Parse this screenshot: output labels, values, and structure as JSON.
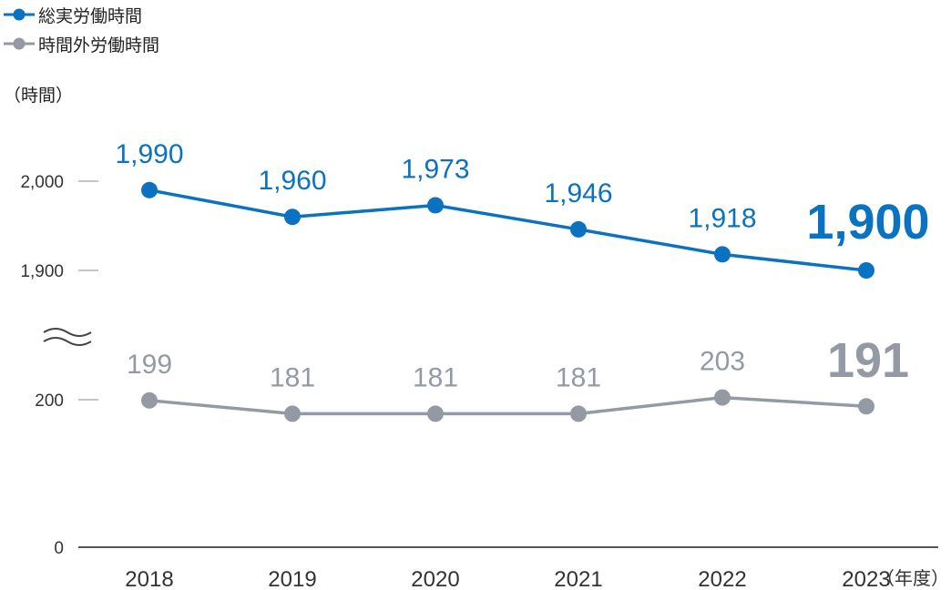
{
  "legend": {
    "total_label": "総実労働時間",
    "overtime_label": "時間外労働時間"
  },
  "unit_label": "（時間）",
  "x_unit_label": "（年度）",
  "colors": {
    "total": "#0a72c0",
    "overtime": "#939aa3",
    "axis": "#888888"
  },
  "chart_data": {
    "type": "line",
    "x": [
      "2018",
      "2019",
      "2020",
      "2021",
      "2022",
      "2023"
    ],
    "axis_break": true,
    "upper_yticks": [
      "2,000",
      "1,900"
    ],
    "lower_yticks": [
      "200",
      "0"
    ],
    "series": [
      {
        "name": "総実労働時間",
        "values": [
          1990,
          1960,
          1973,
          1946,
          1918,
          1900
        ],
        "labels": [
          "1,990",
          "1,960",
          "1,973",
          "1,946",
          "1,918",
          "1,900"
        ]
      },
      {
        "name": "時間外労働時間",
        "values": [
          199,
          181,
          181,
          181,
          203,
          191
        ],
        "labels": [
          "199",
          "181",
          "181",
          "181",
          "203",
          "191"
        ]
      }
    ]
  }
}
